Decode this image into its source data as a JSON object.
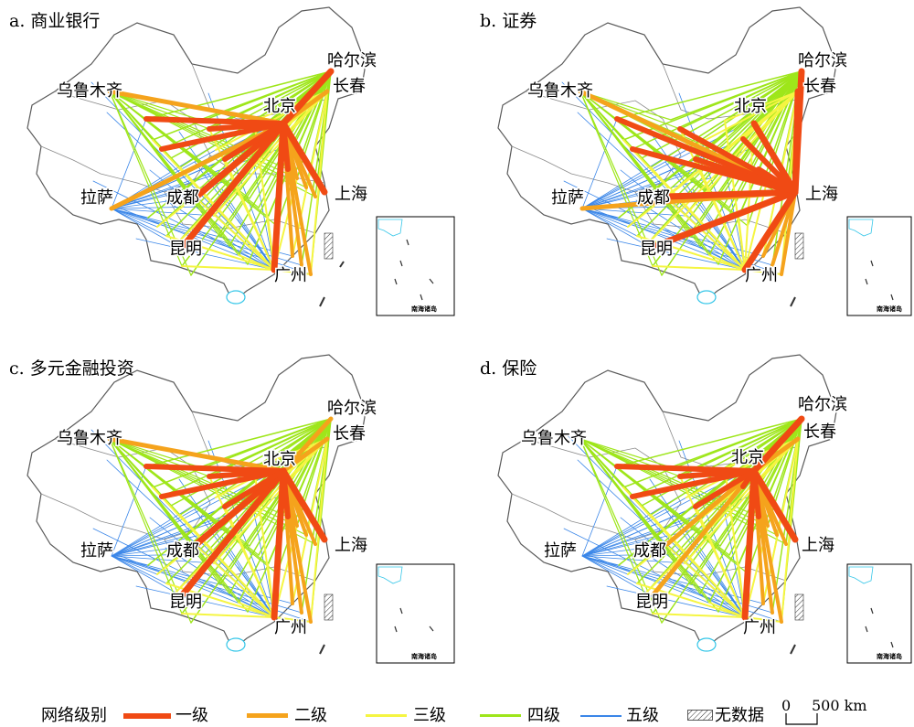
{
  "panels": [
    {
      "title": "a. 商业银行"
    },
    {
      "title": "b. 证券"
    },
    {
      "title": "c. 多元金融投资"
    },
    {
      "title": "d. 保险"
    }
  ],
  "cities": {
    "urumqi": "乌鲁木齐",
    "harbin": "哈尔滨",
    "changchun": "长春",
    "beijing": "北京",
    "lhasa": "拉萨",
    "chengdu": "成都",
    "shanghai": "上海",
    "kunming": "昆明",
    "guangzhou": "广州"
  },
  "inset_label": "南海诸岛",
  "legend": {
    "title": "网络级别",
    "levels": [
      {
        "label": "一级",
        "color": "#f04a14"
      },
      {
        "label": "二级",
        "color": "#f5a31c"
      },
      {
        "label": "三级",
        "color": "#f5f542"
      },
      {
        "label": "四级",
        "color": "#9ee61a"
      },
      {
        "label": "五级",
        "color": "#3a86e8"
      }
    ],
    "nodata_label": "无数据",
    "scale_zero": "0",
    "scale_text": "500 km"
  },
  "colors": {
    "level1": "#f04a14",
    "level2": "#f5a31c",
    "level3": "#f5f542",
    "level4": "#9ee61a",
    "level5": "#3a86e8",
    "coast": "#34c6e8",
    "border": "#5a5a5a"
  }
}
